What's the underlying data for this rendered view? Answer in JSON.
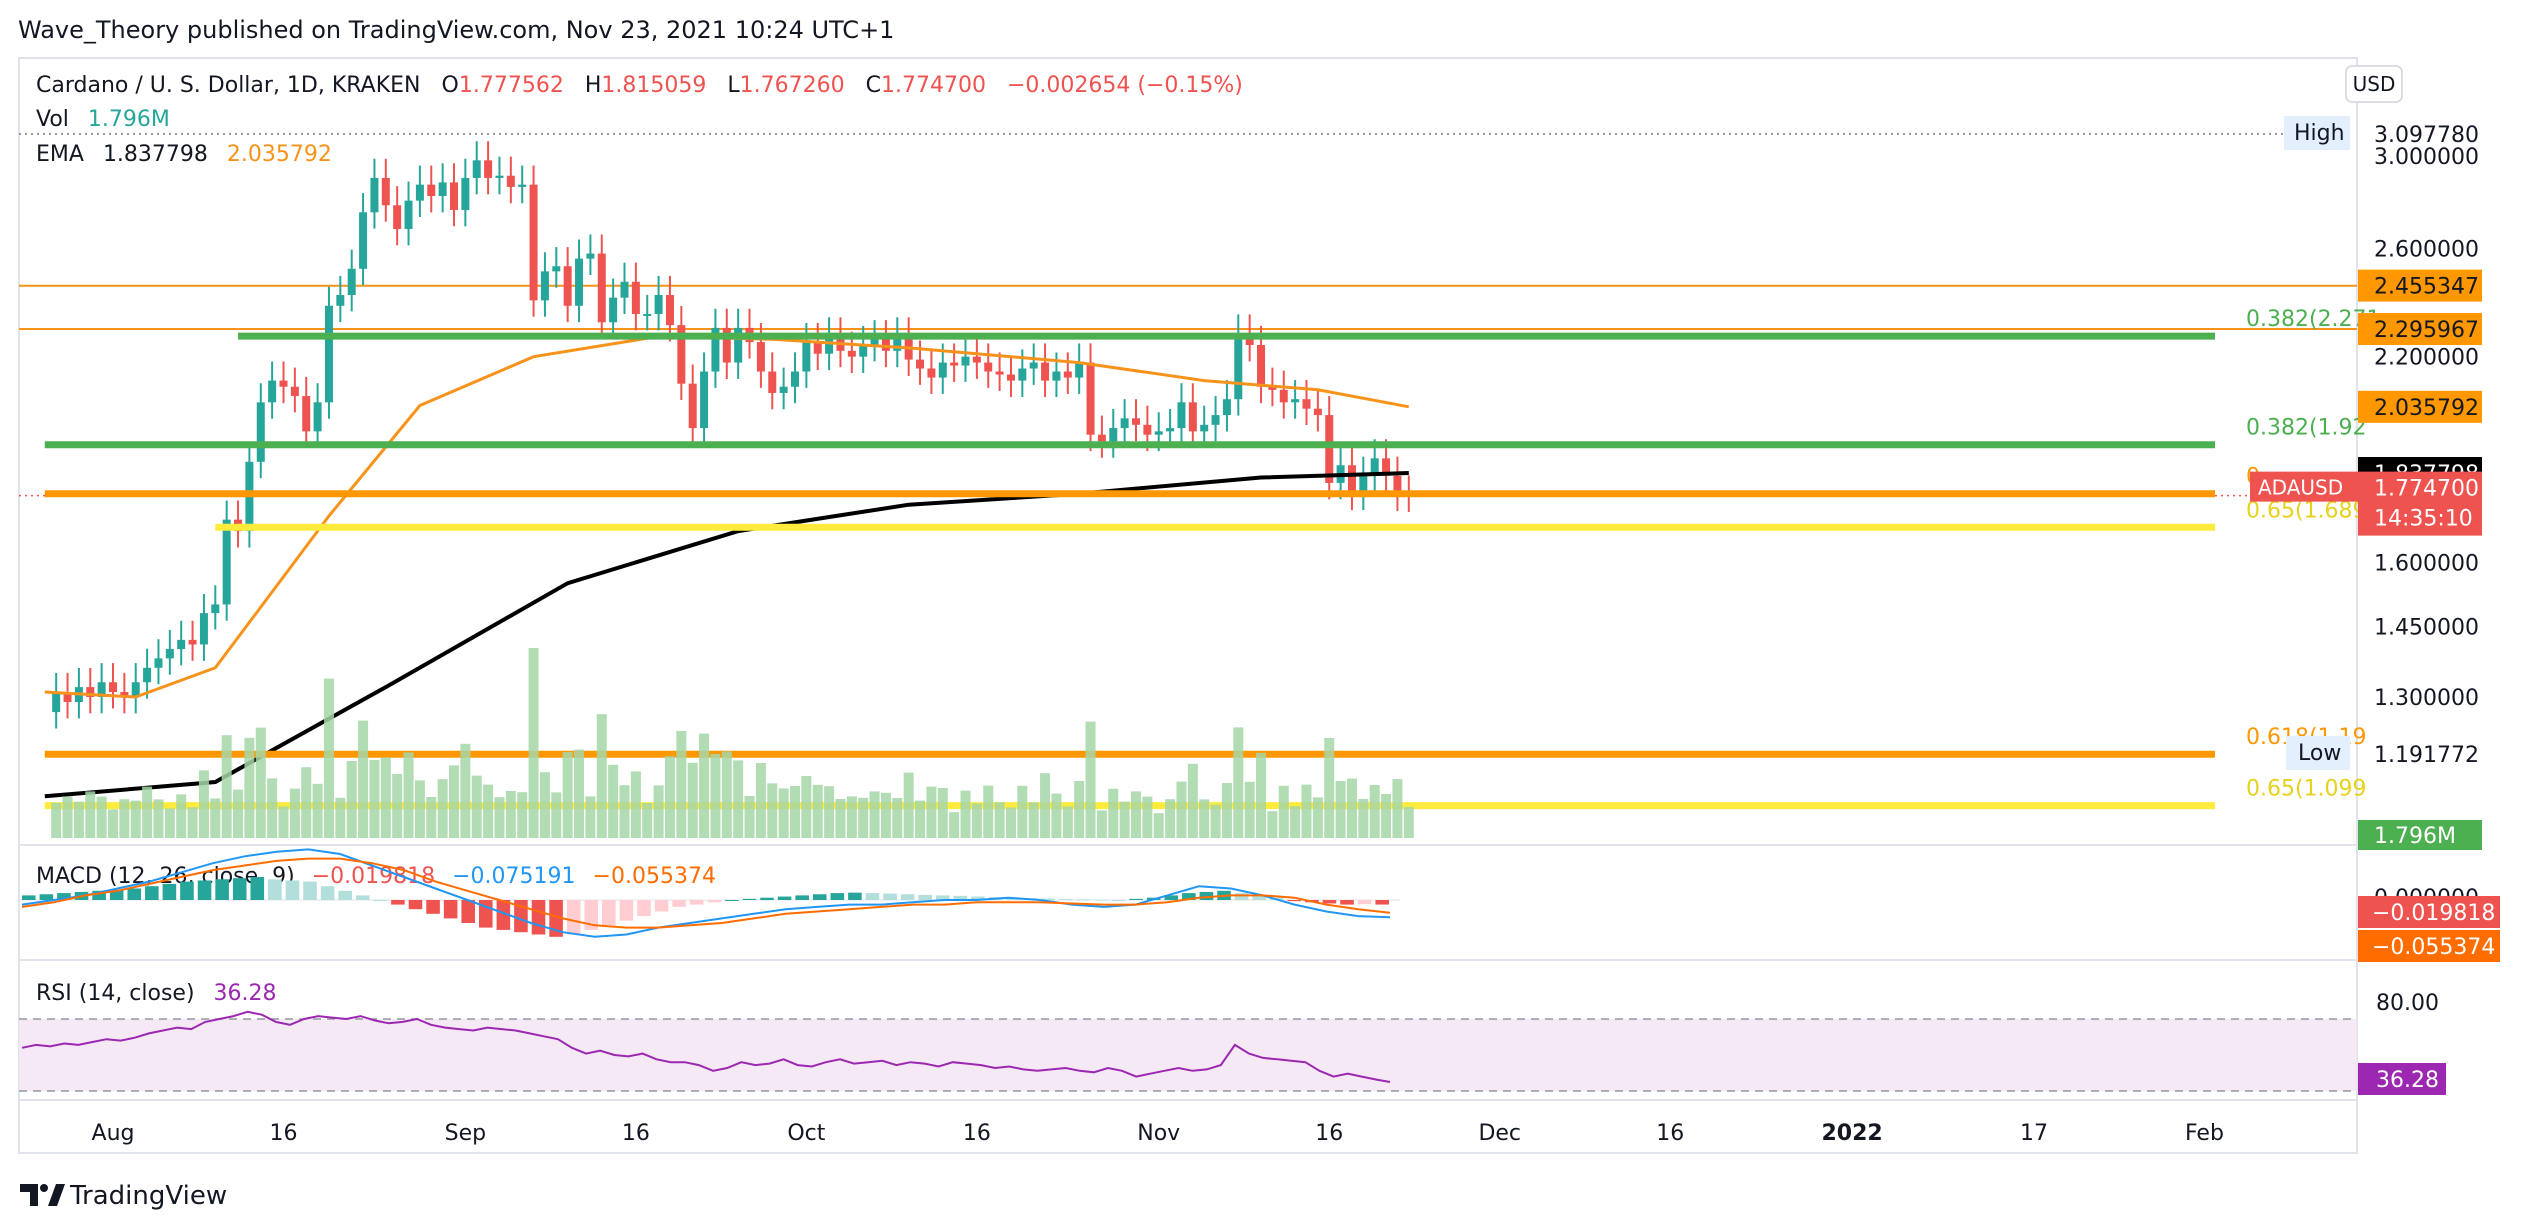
{
  "header": {
    "published": "Wave_Theory published on TradingView.com, Nov 23, 2021 10:24 UTC+1",
    "brand": "TradingView"
  },
  "legend": {
    "symbol": "Cardano / U. S. Dollar, 1D, KRAKEN",
    "o_label": "O",
    "o_value": "1.777562",
    "h_label": "H",
    "h_value": "1.815059",
    "l_label": "L",
    "l_value": "1.767260",
    "c_label": "C",
    "c_value": "1.774700",
    "change": "−0.002654 (−0.15%)",
    "vol_label": "Vol",
    "vol_value": "1.796M",
    "ema_label": "EMA",
    "ema_fast": "1.837798",
    "ema_slow": "2.035792",
    "macd_label": "MACD (12, 26, close, 9)",
    "macd_hist": "−0.019818",
    "macd_line": "−0.075191",
    "macd_signal": "−0.055374",
    "rsi_label": "RSI (14, close)",
    "rsi_value": "36.28"
  },
  "colors": {
    "up": "#26a69a",
    "down": "#ef5350",
    "ema_slow": "#f7931a",
    "ema_fast": "#000000",
    "fib_green": "#4caf50",
    "fib_orange": "#ff9800",
    "fib_yellow": "#ffeb3b",
    "rsi": "#9c27b0",
    "macd": "#2196f3",
    "signal": "#ff6d00"
  },
  "chart_data": {
    "type": "line",
    "currency": "USD",
    "price_axis_ticks": [
      "3.000000",
      "2.600000",
      "2.200000",
      "1.600000",
      "1.450000",
      "1.300000"
    ],
    "time_axis_ticks": [
      "Aug",
      "16",
      "Sep",
      "16",
      "Oct",
      "16",
      "Nov",
      "16",
      "Dec",
      "16",
      "2022",
      "17",
      "Feb"
    ],
    "time_tick_dates": [
      "2021-08-01",
      "2021-08-16",
      "2021-09-01",
      "2021-09-16",
      "2021-10-01",
      "2021-10-16",
      "2021-11-01",
      "2021-11-16",
      "2021-12-01",
      "2021-12-16",
      "2022-01-01",
      "2022-01-17",
      "2022-02-01"
    ],
    "high_label": "High",
    "high_value": "3.097780",
    "low_label": "Low",
    "low_value": "1.191772",
    "last_price": {
      "label": "ADAUSD",
      "value": "1.774700",
      "countdown": "14:35:10"
    },
    "price_tags": [
      {
        "value": "2.455347",
        "color": "#ff9800"
      },
      {
        "value": "2.295967",
        "color": "#ff9800"
      },
      {
        "value": "2.035792",
        "color": "#ff9800"
      },
      {
        "value": "1.837798",
        "color": "#000000"
      }
    ],
    "fib_levels": [
      {
        "label": "0.382(2.271",
        "price": 2.271,
        "color": "#4caf50",
        "start": "2021-08-12"
      },
      {
        "label": "0.382(1.92",
        "price": 1.92,
        "color": "#4caf50",
        "start": "2021-07-26"
      },
      {
        "label": "0.",
        "price": 1.78,
        "color": "#ff9800",
        "start": "2021-07-26"
      },
      {
        "label": "0.65(1.689",
        "price": 1.69,
        "color": "#ffeb3b",
        "start": "2021-08-10"
      },
      {
        "label": "0.618(1.19",
        "price": 1.19,
        "color": "#ff9800",
        "start": "2021-07-26"
      },
      {
        "label": "0.65(1.099",
        "price": 1.099,
        "color": "#ffeb3b",
        "start": "2021-07-26"
      }
    ],
    "horizontal_lines": [
      {
        "price": 2.455,
        "color": "#f7931a"
      },
      {
        "price": 2.296,
        "color": "#f7931a"
      }
    ],
    "price_series": [
      {
        "d": "2021-07-27",
        "o": 1.27,
        "c": 1.31
      },
      {
        "d": "2021-07-28",
        "o": 1.31,
        "c": 1.29
      },
      {
        "d": "2021-07-29",
        "o": 1.29,
        "c": 1.32
      },
      {
        "d": "2021-07-30",
        "o": 1.32,
        "c": 1.3
      },
      {
        "d": "2021-07-31",
        "o": 1.3,
        "c": 1.33
      },
      {
        "d": "2021-08-01",
        "o": 1.33,
        "c": 1.31
      },
      {
        "d": "2021-08-02",
        "o": 1.31,
        "c": 1.3
      },
      {
        "d": "2021-08-03",
        "o": 1.3,
        "c": 1.33
      },
      {
        "d": "2021-08-04",
        "o": 1.33,
        "c": 1.36
      },
      {
        "d": "2021-08-05",
        "o": 1.36,
        "c": 1.38
      },
      {
        "d": "2021-08-06",
        "o": 1.38,
        "c": 1.4
      },
      {
        "d": "2021-08-07",
        "o": 1.4,
        "c": 1.42
      },
      {
        "d": "2021-08-08",
        "o": 1.42,
        "c": 1.41
      },
      {
        "d": "2021-08-09",
        "o": 1.41,
        "c": 1.48
      },
      {
        "d": "2021-08-10",
        "o": 1.48,
        "c": 1.5
      },
      {
        "d": "2021-08-11",
        "o": 1.5,
        "c": 1.71
      },
      {
        "d": "2021-08-12",
        "o": 1.71,
        "c": 1.68
      },
      {
        "d": "2021-08-13",
        "o": 1.68,
        "c": 1.87
      },
      {
        "d": "2021-08-14",
        "o": 1.87,
        "c": 2.05
      },
      {
        "d": "2021-08-15",
        "o": 2.05,
        "c": 2.12
      },
      {
        "d": "2021-08-16",
        "o": 2.12,
        "c": 2.1
      },
      {
        "d": "2021-08-17",
        "o": 2.1,
        "c": 2.07
      },
      {
        "d": "2021-08-18",
        "o": 2.07,
        "c": 1.96
      },
      {
        "d": "2021-08-19",
        "o": 1.96,
        "c": 2.05
      },
      {
        "d": "2021-08-20",
        "o": 2.05,
        "c": 2.38
      },
      {
        "d": "2021-08-21",
        "o": 2.38,
        "c": 2.42
      },
      {
        "d": "2021-08-22",
        "o": 2.42,
        "c": 2.52
      },
      {
        "d": "2021-08-23",
        "o": 2.52,
        "c": 2.75
      },
      {
        "d": "2021-08-24",
        "o": 2.75,
        "c": 2.9
      },
      {
        "d": "2021-08-25",
        "o": 2.9,
        "c": 2.78
      },
      {
        "d": "2021-08-26",
        "o": 2.78,
        "c": 2.68
      },
      {
        "d": "2021-08-27",
        "o": 2.68,
        "c": 2.8
      },
      {
        "d": "2021-08-28",
        "o": 2.8,
        "c": 2.87
      },
      {
        "d": "2021-08-29",
        "o": 2.87,
        "c": 2.82
      },
      {
        "d": "2021-08-30",
        "o": 2.82,
        "c": 2.88
      },
      {
        "d": "2021-08-31",
        "o": 2.88,
        "c": 2.76
      },
      {
        "d": "2021-09-01",
        "o": 2.76,
        "c": 2.9
      },
      {
        "d": "2021-09-02",
        "o": 2.9,
        "c": 2.98
      },
      {
        "d": "2021-09-03",
        "o": 2.98,
        "c": 2.9
      },
      {
        "d": "2021-09-04",
        "o": 2.9,
        "c": 2.91
      },
      {
        "d": "2021-09-05",
        "o": 2.91,
        "c": 2.86
      },
      {
        "d": "2021-09-06",
        "o": 2.86,
        "c": 2.87
      },
      {
        "d": "2021-09-07",
        "o": 2.87,
        "c": 2.4
      },
      {
        "d": "2021-09-08",
        "o": 2.4,
        "c": 2.51
      },
      {
        "d": "2021-09-09",
        "o": 2.51,
        "c": 2.53
      },
      {
        "d": "2021-09-10",
        "o": 2.53,
        "c": 2.38
      },
      {
        "d": "2021-09-11",
        "o": 2.38,
        "c": 2.56
      },
      {
        "d": "2021-09-12",
        "o": 2.56,
        "c": 2.58
      },
      {
        "d": "2021-09-13",
        "o": 2.58,
        "c": 2.32
      },
      {
        "d": "2021-09-14",
        "o": 2.32,
        "c": 2.41
      },
      {
        "d": "2021-09-15",
        "o": 2.41,
        "c": 2.47
      },
      {
        "d": "2021-09-16",
        "o": 2.47,
        "c": 2.35
      },
      {
        "d": "2021-09-17",
        "o": 2.35,
        "c": 2.35
      },
      {
        "d": "2021-09-18",
        "o": 2.35,
        "c": 2.42
      },
      {
        "d": "2021-09-19",
        "o": 2.42,
        "c": 2.31
      },
      {
        "d": "2021-09-20",
        "o": 2.31,
        "c": 2.11
      },
      {
        "d": "2021-09-21",
        "o": 2.11,
        "c": 1.97
      },
      {
        "d": "2021-09-22",
        "o": 1.97,
        "c": 2.15
      },
      {
        "d": "2021-09-23",
        "o": 2.15,
        "c": 2.3
      },
      {
        "d": "2021-09-24",
        "o": 2.3,
        "c": 2.18
      },
      {
        "d": "2021-09-25",
        "o": 2.18,
        "c": 2.3
      },
      {
        "d": "2021-09-26",
        "o": 2.3,
        "c": 2.25
      },
      {
        "d": "2021-09-27",
        "o": 2.25,
        "c": 2.15
      },
      {
        "d": "2021-09-28",
        "o": 2.15,
        "c": 2.08
      },
      {
        "d": "2021-09-29",
        "o": 2.08,
        "c": 2.1
      },
      {
        "d": "2021-09-30",
        "o": 2.1,
        "c": 2.15
      },
      {
        "d": "2021-10-01",
        "o": 2.15,
        "c": 2.25
      },
      {
        "d": "2021-10-02",
        "o": 2.25,
        "c": 2.21
      },
      {
        "d": "2021-10-03",
        "o": 2.21,
        "c": 2.27
      },
      {
        "d": "2021-10-04",
        "o": 2.27,
        "c": 2.22
      },
      {
        "d": "2021-10-05",
        "o": 2.22,
        "c": 2.2
      },
      {
        "d": "2021-10-06",
        "o": 2.2,
        "c": 2.24
      },
      {
        "d": "2021-10-07",
        "o": 2.24,
        "c": 2.26
      },
      {
        "d": "2021-10-08",
        "o": 2.26,
        "c": 2.22
      },
      {
        "d": "2021-10-09",
        "o": 2.22,
        "c": 2.27
      },
      {
        "d": "2021-10-10",
        "o": 2.27,
        "c": 2.19
      },
      {
        "d": "2021-10-11",
        "o": 2.19,
        "c": 2.16
      },
      {
        "d": "2021-10-12",
        "o": 2.16,
        "c": 2.13
      },
      {
        "d": "2021-10-13",
        "o": 2.13,
        "c": 2.18
      },
      {
        "d": "2021-10-14",
        "o": 2.18,
        "c": 2.17
      },
      {
        "d": "2021-10-15",
        "o": 2.17,
        "c": 2.2
      },
      {
        "d": "2021-10-16",
        "o": 2.2,
        "c": 2.18
      },
      {
        "d": "2021-10-17",
        "o": 2.18,
        "c": 2.15
      },
      {
        "d": "2021-10-18",
        "o": 2.15,
        "c": 2.14
      },
      {
        "d": "2021-10-19",
        "o": 2.14,
        "c": 2.12
      },
      {
        "d": "2021-10-20",
        "o": 2.12,
        "c": 2.16
      },
      {
        "d": "2021-10-21",
        "o": 2.16,
        "c": 2.18
      },
      {
        "d": "2021-10-22",
        "o": 2.18,
        "c": 2.12
      },
      {
        "d": "2021-10-23",
        "o": 2.12,
        "c": 2.15
      },
      {
        "d": "2021-10-24",
        "o": 2.15,
        "c": 2.13
      },
      {
        "d": "2021-10-25",
        "o": 2.13,
        "c": 2.18
      },
      {
        "d": "2021-10-26",
        "o": 2.18,
        "c": 1.95
      },
      {
        "d": "2021-10-27",
        "o": 1.95,
        "c": 1.93
      },
      {
        "d": "2021-10-28",
        "o": 1.93,
        "c": 1.97
      },
      {
        "d": "2021-10-29",
        "o": 1.97,
        "c": 2.0
      },
      {
        "d": "2021-10-30",
        "o": 2.0,
        "c": 1.98
      },
      {
        "d": "2021-10-31",
        "o": 1.98,
        "c": 1.95
      },
      {
        "d": "2021-11-01",
        "o": 1.95,
        "c": 1.96
      },
      {
        "d": "2021-11-02",
        "o": 1.96,
        "c": 1.97
      },
      {
        "d": "2021-11-03",
        "o": 1.97,
        "c": 2.05
      },
      {
        "d": "2021-11-04",
        "o": 2.05,
        "c": 1.96
      },
      {
        "d": "2021-11-05",
        "o": 1.96,
        "c": 1.98
      },
      {
        "d": "2021-11-06",
        "o": 1.98,
        "c": 2.01
      },
      {
        "d": "2021-11-07",
        "o": 2.01,
        "c": 2.06
      },
      {
        "d": "2021-11-08",
        "o": 2.06,
        "c": 2.28
      },
      {
        "d": "2021-11-09",
        "o": 2.28,
        "c": 2.24
      },
      {
        "d": "2021-11-10",
        "o": 2.24,
        "c": 2.1
      },
      {
        "d": "2021-11-11",
        "o": 2.1,
        "c": 2.09
      },
      {
        "d": "2021-11-12",
        "o": 2.09,
        "c": 2.05
      },
      {
        "d": "2021-11-13",
        "o": 2.05,
        "c": 2.06
      },
      {
        "d": "2021-11-14",
        "o": 2.06,
        "c": 2.03
      },
      {
        "d": "2021-11-15",
        "o": 2.03,
        "c": 2.01
      },
      {
        "d": "2021-11-16",
        "o": 2.01,
        "c": 1.81
      },
      {
        "d": "2021-11-17",
        "o": 1.81,
        "c": 1.86
      },
      {
        "d": "2021-11-18",
        "o": 1.86,
        "c": 1.78
      },
      {
        "d": "2021-11-19",
        "o": 1.78,
        "c": 1.83
      },
      {
        "d": "2021-11-20",
        "o": 1.83,
        "c": 1.88
      },
      {
        "d": "2021-11-21",
        "o": 1.88,
        "c": 1.83
      },
      {
        "d": "2021-11-22",
        "o": 1.83,
        "c": 1.7776
      },
      {
        "d": "2021-11-23",
        "o": 1.7776,
        "c": 1.7747
      }
    ],
    "ema_series": [
      {
        "name": "EMA 1.837798",
        "color": "#000000",
        "points": [
          [
            "2021-07-26",
            1.115
          ],
          [
            "2021-08-10",
            1.14
          ],
          [
            "2021-08-25",
            1.32
          ],
          [
            "2021-09-10",
            1.55
          ],
          [
            "2021-09-25",
            1.68
          ],
          [
            "2021-10-10",
            1.75
          ],
          [
            "2021-10-25",
            1.78
          ],
          [
            "2021-11-10",
            1.825
          ],
          [
            "2021-11-23",
            1.838
          ]
        ]
      },
      {
        "name": "EMA 2.035792",
        "color": "#f7931a",
        "points": [
          [
            "2021-07-26",
            1.31
          ],
          [
            "2021-08-03",
            1.3
          ],
          [
            "2021-08-10",
            1.36
          ],
          [
            "2021-08-20",
            1.72
          ],
          [
            "2021-08-28",
            2.04
          ],
          [
            "2021-09-07",
            2.2
          ],
          [
            "2021-09-18",
            2.27
          ],
          [
            "2021-09-28",
            2.26
          ],
          [
            "2021-10-10",
            2.23
          ],
          [
            "2021-10-25",
            2.18
          ],
          [
            "2021-11-05",
            2.12
          ],
          [
            "2021-11-15",
            2.09
          ],
          [
            "2021-11-23",
            2.036
          ]
        ]
      }
    ],
    "rsi_level_top": "80.00",
    "rsi_series": [
      60,
      62,
      61,
      63,
      62,
      64,
      66,
      65,
      67,
      70,
      72,
      74,
      73,
      78,
      80,
      82,
      85,
      83,
      78,
      76,
      80,
      82,
      81,
      80,
      82,
      79,
      77,
      78,
      80,
      76,
      74,
      73,
      72,
      74,
      73,
      72,
      70,
      68,
      66,
      60,
      56,
      58,
      55,
      54,
      56,
      52,
      50,
      50,
      48,
      44,
      46,
      50,
      48,
      49,
      52,
      48,
      47,
      50,
      52,
      49,
      50,
      51,
      48,
      50,
      49,
      47,
      50,
      49,
      48,
      46,
      47,
      45,
      44,
      45,
      46,
      44,
      43,
      46,
      44,
      40,
      42,
      44,
      46,
      44,
      45,
      48,
      62,
      56,
      53,
      52,
      51,
      50,
      44,
      40,
      42,
      40,
      38,
      36.28
    ],
    "macd_hist_series": [
      0.02,
      0.025,
      0.03,
      0.035,
      0.04,
      0.045,
      0.05,
      0.06,
      0.07,
      0.08,
      0.085,
      0.09,
      0.095,
      0.1,
      0.09,
      0.085,
      0.08,
      0.06,
      0.04,
      0.02,
      0.0,
      -0.02,
      -0.04,
      -0.06,
      -0.08,
      -0.1,
      -0.12,
      -0.13,
      -0.14,
      -0.15,
      -0.16,
      -0.15,
      -0.13,
      -0.11,
      -0.09,
      -0.07,
      -0.05,
      -0.03,
      -0.02,
      -0.01,
      0.0,
      0.005,
      0.01,
      0.015,
      0.02,
      0.025,
      0.03,
      0.032,
      0.03,
      0.028,
      0.025,
      0.022,
      0.02,
      0.018,
      0.015,
      0.012,
      0.01,
      0.008,
      0.006,
      0.004,
      0.003,
      0.002,
      0.0,
      0.005,
      0.01,
      0.02,
      0.03,
      0.035,
      0.04,
      0.03,
      0.02,
      0.01,
      -0.005,
      -0.01,
      -0.015,
      -0.02,
      -0.018,
      -0.019818
    ],
    "macd_line_series": [
      -0.02,
      0.0,
      0.02,
      0.05,
      0.08,
      0.12,
      0.16,
      0.19,
      0.21,
      0.22,
      0.2,
      0.15,
      0.1,
      0.05,
      0.0,
      -0.05,
      -0.1,
      -0.14,
      -0.16,
      -0.15,
      -0.12,
      -0.1,
      -0.08,
      -0.06,
      -0.04,
      -0.03,
      -0.02,
      -0.02,
      -0.01,
      0.0,
      0.0,
      0.01,
      0.0,
      -0.02,
      -0.03,
      -0.02,
      0.02,
      0.06,
      0.05,
      0.02,
      -0.02,
      -0.05,
      -0.07,
      -0.075191
    ],
    "macd_signal_series": [
      -0.03,
      -0.01,
      0.02,
      0.04,
      0.07,
      0.1,
      0.13,
      0.15,
      0.17,
      0.18,
      0.18,
      0.16,
      0.13,
      0.08,
      0.04,
      0.0,
      -0.04,
      -0.08,
      -0.11,
      -0.12,
      -0.12,
      -0.11,
      -0.1,
      -0.08,
      -0.06,
      -0.05,
      -0.04,
      -0.03,
      -0.02,
      -0.02,
      -0.01,
      -0.01,
      -0.01,
      -0.015,
      -0.02,
      -0.02,
      -0.01,
      0.01,
      0.02,
      0.02,
      0.01,
      -0.02,
      -0.04,
      -0.055374
    ],
    "macd_axis_tick": "0.000000",
    "volume_tag": "1.796M"
  }
}
